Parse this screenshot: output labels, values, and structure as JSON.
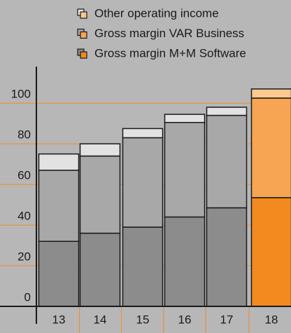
{
  "chart_data": {
    "type": "stacked_bar",
    "categories": [
      "13",
      "14",
      "15",
      "16",
      "17",
      "18"
    ],
    "series": [
      {
        "name": "Gross margin M+M Software",
        "colors": [
          "#8c8c8c",
          "#8c8c8c",
          "#8c8c8c",
          "#8c8c8c",
          "#8c8c8c",
          "#f28a20"
        ],
        "values": [
          32,
          36,
          39,
          44,
          48.5,
          53.5
        ]
      },
      {
        "name": "Gross margin VAR Business",
        "colors": [
          "#a8a8a8",
          "#a8a8a8",
          "#a8a8a8",
          "#a8a8a8",
          "#a8a8a8",
          "#f7a552"
        ],
        "values": [
          35,
          38,
          44,
          46.5,
          45.5,
          49
        ]
      },
      {
        "name": "Other operating income",
        "colors": [
          "#e2e2e2",
          "#e2e2e2",
          "#e2e2e2",
          "#e2e2e2",
          "#e2e2e2",
          "#fbc88d"
        ],
        "values": [
          8,
          6,
          4.5,
          4,
          4,
          4.5
        ]
      }
    ],
    "ylim": [
      0,
      118
    ],
    "yticks": [
      0,
      20,
      40,
      60,
      80,
      100
    ],
    "grid": true,
    "grid_color": "#f08a2a"
  }
}
